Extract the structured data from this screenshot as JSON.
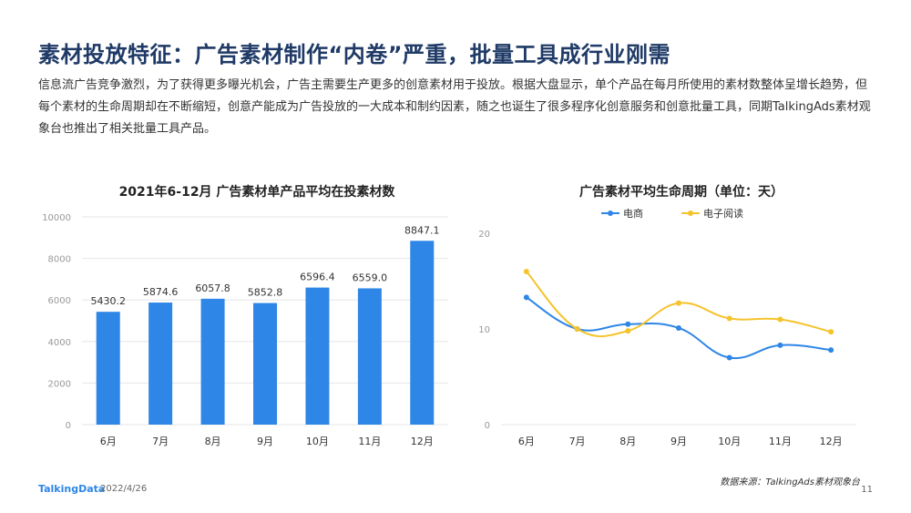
{
  "page": {
    "title": "素材投放特征：广告素材制作“内卷”严重，批量工具成行业刚需",
    "intro": "信息流广告竞争激烈，为了获得更多曝光机会，广告主需要生产更多的创意素材用于投放。根据大盘显示，单个产品在每月所使用的素材数整体呈增长趋势，但每个素材的生命周期却在不断缩短，创意产能成为广告投放的一大成本和制约因素，随之也诞生了很多程序化创意服务和创意批量工具，同期TalkingAds素材观象台也推出了相关批量工具产品。"
  },
  "footer": {
    "logo": "TalkingData",
    "date": "2022/4/26",
    "source": "数据来源：TalkingAds素材观象台",
    "page_number": "11"
  },
  "chart_data": [
    {
      "type": "bar",
      "title": "2021年6-12月 广告素材单产品平均在投素材数",
      "categories": [
        "6月",
        "7月",
        "8月",
        "9月",
        "10月",
        "11月",
        "12月"
      ],
      "values": [
        5430.2,
        5874.6,
        6057.8,
        5852.8,
        6596.4,
        6559.0,
        8847.1
      ],
      "value_labels": [
        "5430.2",
        "5874.6",
        "6057.8",
        "5852.8",
        "6596.4",
        "6559.0",
        "8847.1"
      ],
      "ylim": [
        0,
        10000
      ],
      "yticks": [
        0,
        2000,
        4000,
        6000,
        8000,
        10000
      ],
      "grid": true,
      "color": "#2e86e6"
    },
    {
      "type": "line",
      "title": "广告素材平均生命周期（单位：天）",
      "categories": [
        "6月",
        "7月",
        "8月",
        "9月",
        "10月",
        "11月",
        "12月"
      ],
      "series": [
        {
          "name": "电商",
          "values": [
            13.3,
            10.0,
            10.5,
            10.1,
            7.0,
            8.3,
            7.8
          ],
          "color": "#2e86e6"
        },
        {
          "name": "电子阅读",
          "values": [
            16.0,
            10.0,
            9.8,
            12.7,
            11.1,
            11.0,
            9.7
          ],
          "color": "#f5c32c"
        }
      ],
      "ylim": [
        0,
        20
      ],
      "yticks": [
        0,
        10,
        20
      ],
      "legend": "top-center",
      "grid": false
    }
  ]
}
